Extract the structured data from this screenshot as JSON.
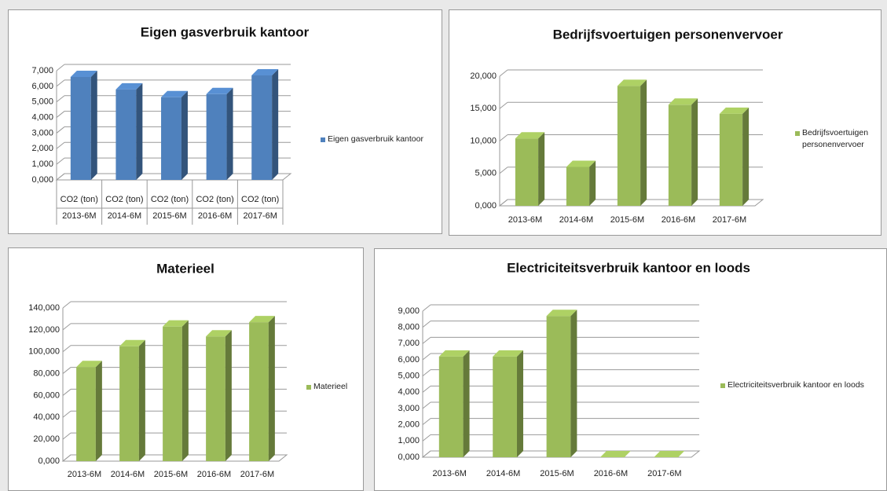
{
  "chart_data": [
    {
      "type": "bar3d",
      "title": "Eigen gasverbruik kantoor",
      "categories": [
        "2013-6M",
        "2014-6M",
        "2015-6M",
        "2016-6M",
        "2017-6M"
      ],
      "category_sublabels": [
        "CO2 (ton)",
        "CO2 (ton)",
        "CO2 (ton)",
        "CO2 (ton)",
        "CO2 (ton)"
      ],
      "series": [
        {
          "name": "Eigen gasverbruik kantoor",
          "color": "#4f81bd",
          "values": [
            6.6,
            5.8,
            5.3,
            5.5,
            6.7
          ]
        }
      ],
      "ylim": [
        0,
        7
      ],
      "yticks": [
        {
          "value": 0,
          "label": "0,000"
        },
        {
          "value": 1,
          "label": "1,000"
        },
        {
          "value": 2,
          "label": "2,000"
        },
        {
          "value": 3,
          "label": "3,000"
        },
        {
          "value": 4,
          "label": "4,000"
        },
        {
          "value": 5,
          "label": "5,000"
        },
        {
          "value": 6,
          "label": "6,000"
        },
        {
          "value": 7,
          "label": "7,000"
        }
      ],
      "grid": true,
      "legend": "right"
    },
    {
      "type": "bar3d",
      "title": "Bedrijfsvoertuigen personenvervoer",
      "categories": [
        "2013-6M",
        "2014-6M",
        "2015-6M",
        "2016-6M",
        "2017-6M"
      ],
      "series": [
        {
          "name": "Bedrijfsvoertuigen personenvervoer",
          "color": "#9bbb59",
          "values": [
            10.4,
            6.0,
            18.5,
            15.6,
            14.2
          ]
        }
      ],
      "ylim": [
        0,
        20
      ],
      "yticks": [
        {
          "value": 0,
          "label": "0,000"
        },
        {
          "value": 5,
          "label": "5,000"
        },
        {
          "value": 10,
          "label": "10,000"
        },
        {
          "value": 15,
          "label": "15,000"
        },
        {
          "value": 20,
          "label": "20,000"
        }
      ],
      "grid": true,
      "legend": "right"
    },
    {
      "type": "bar3d",
      "title": "Materieel",
      "categories": [
        "2013-6M",
        "2014-6M",
        "2015-6M",
        "2016-6M",
        "2017-6M"
      ],
      "series": [
        {
          "name": "Materieel",
          "color": "#9bbb59",
          "values": [
            86,
            105,
            123,
            114,
            127
          ]
        }
      ],
      "ylim": [
        0,
        140
      ],
      "yticks": [
        {
          "value": 0,
          "label": "0,000"
        },
        {
          "value": 20,
          "label": "20,000"
        },
        {
          "value": 40,
          "label": "40,000"
        },
        {
          "value": 60,
          "label": "60,000"
        },
        {
          "value": 80,
          "label": "80,000"
        },
        {
          "value": 100,
          "label": "100,000"
        },
        {
          "value": 120,
          "label": "120,000"
        },
        {
          "value": 140,
          "label": "140,000"
        }
      ],
      "grid": true,
      "legend": "right"
    },
    {
      "type": "bar3d",
      "title": "Electriciteitsverbruik kantoor en loods",
      "categories": [
        "2013-6M",
        "2014-6M",
        "2015-6M",
        "2016-6M",
        "2017-6M"
      ],
      "series": [
        {
          "name": "Electriciteitsverbruik kantoor en loods",
          "color": "#9bbb59",
          "values": [
            6.2,
            6.2,
            8.7,
            0,
            0
          ]
        }
      ],
      "ylim": [
        0,
        9
      ],
      "yticks": [
        {
          "value": 0,
          "label": "0,000"
        },
        {
          "value": 1,
          "label": "1,000"
        },
        {
          "value": 2,
          "label": "2,000"
        },
        {
          "value": 3,
          "label": "3,000"
        },
        {
          "value": 4,
          "label": "4,000"
        },
        {
          "value": 5,
          "label": "5,000"
        },
        {
          "value": 6,
          "label": "6,000"
        },
        {
          "value": 7,
          "label": "7,000"
        },
        {
          "value": 8,
          "label": "8,000"
        },
        {
          "value": 9,
          "label": "9,000"
        }
      ],
      "grid": true,
      "legend": "right"
    }
  ]
}
